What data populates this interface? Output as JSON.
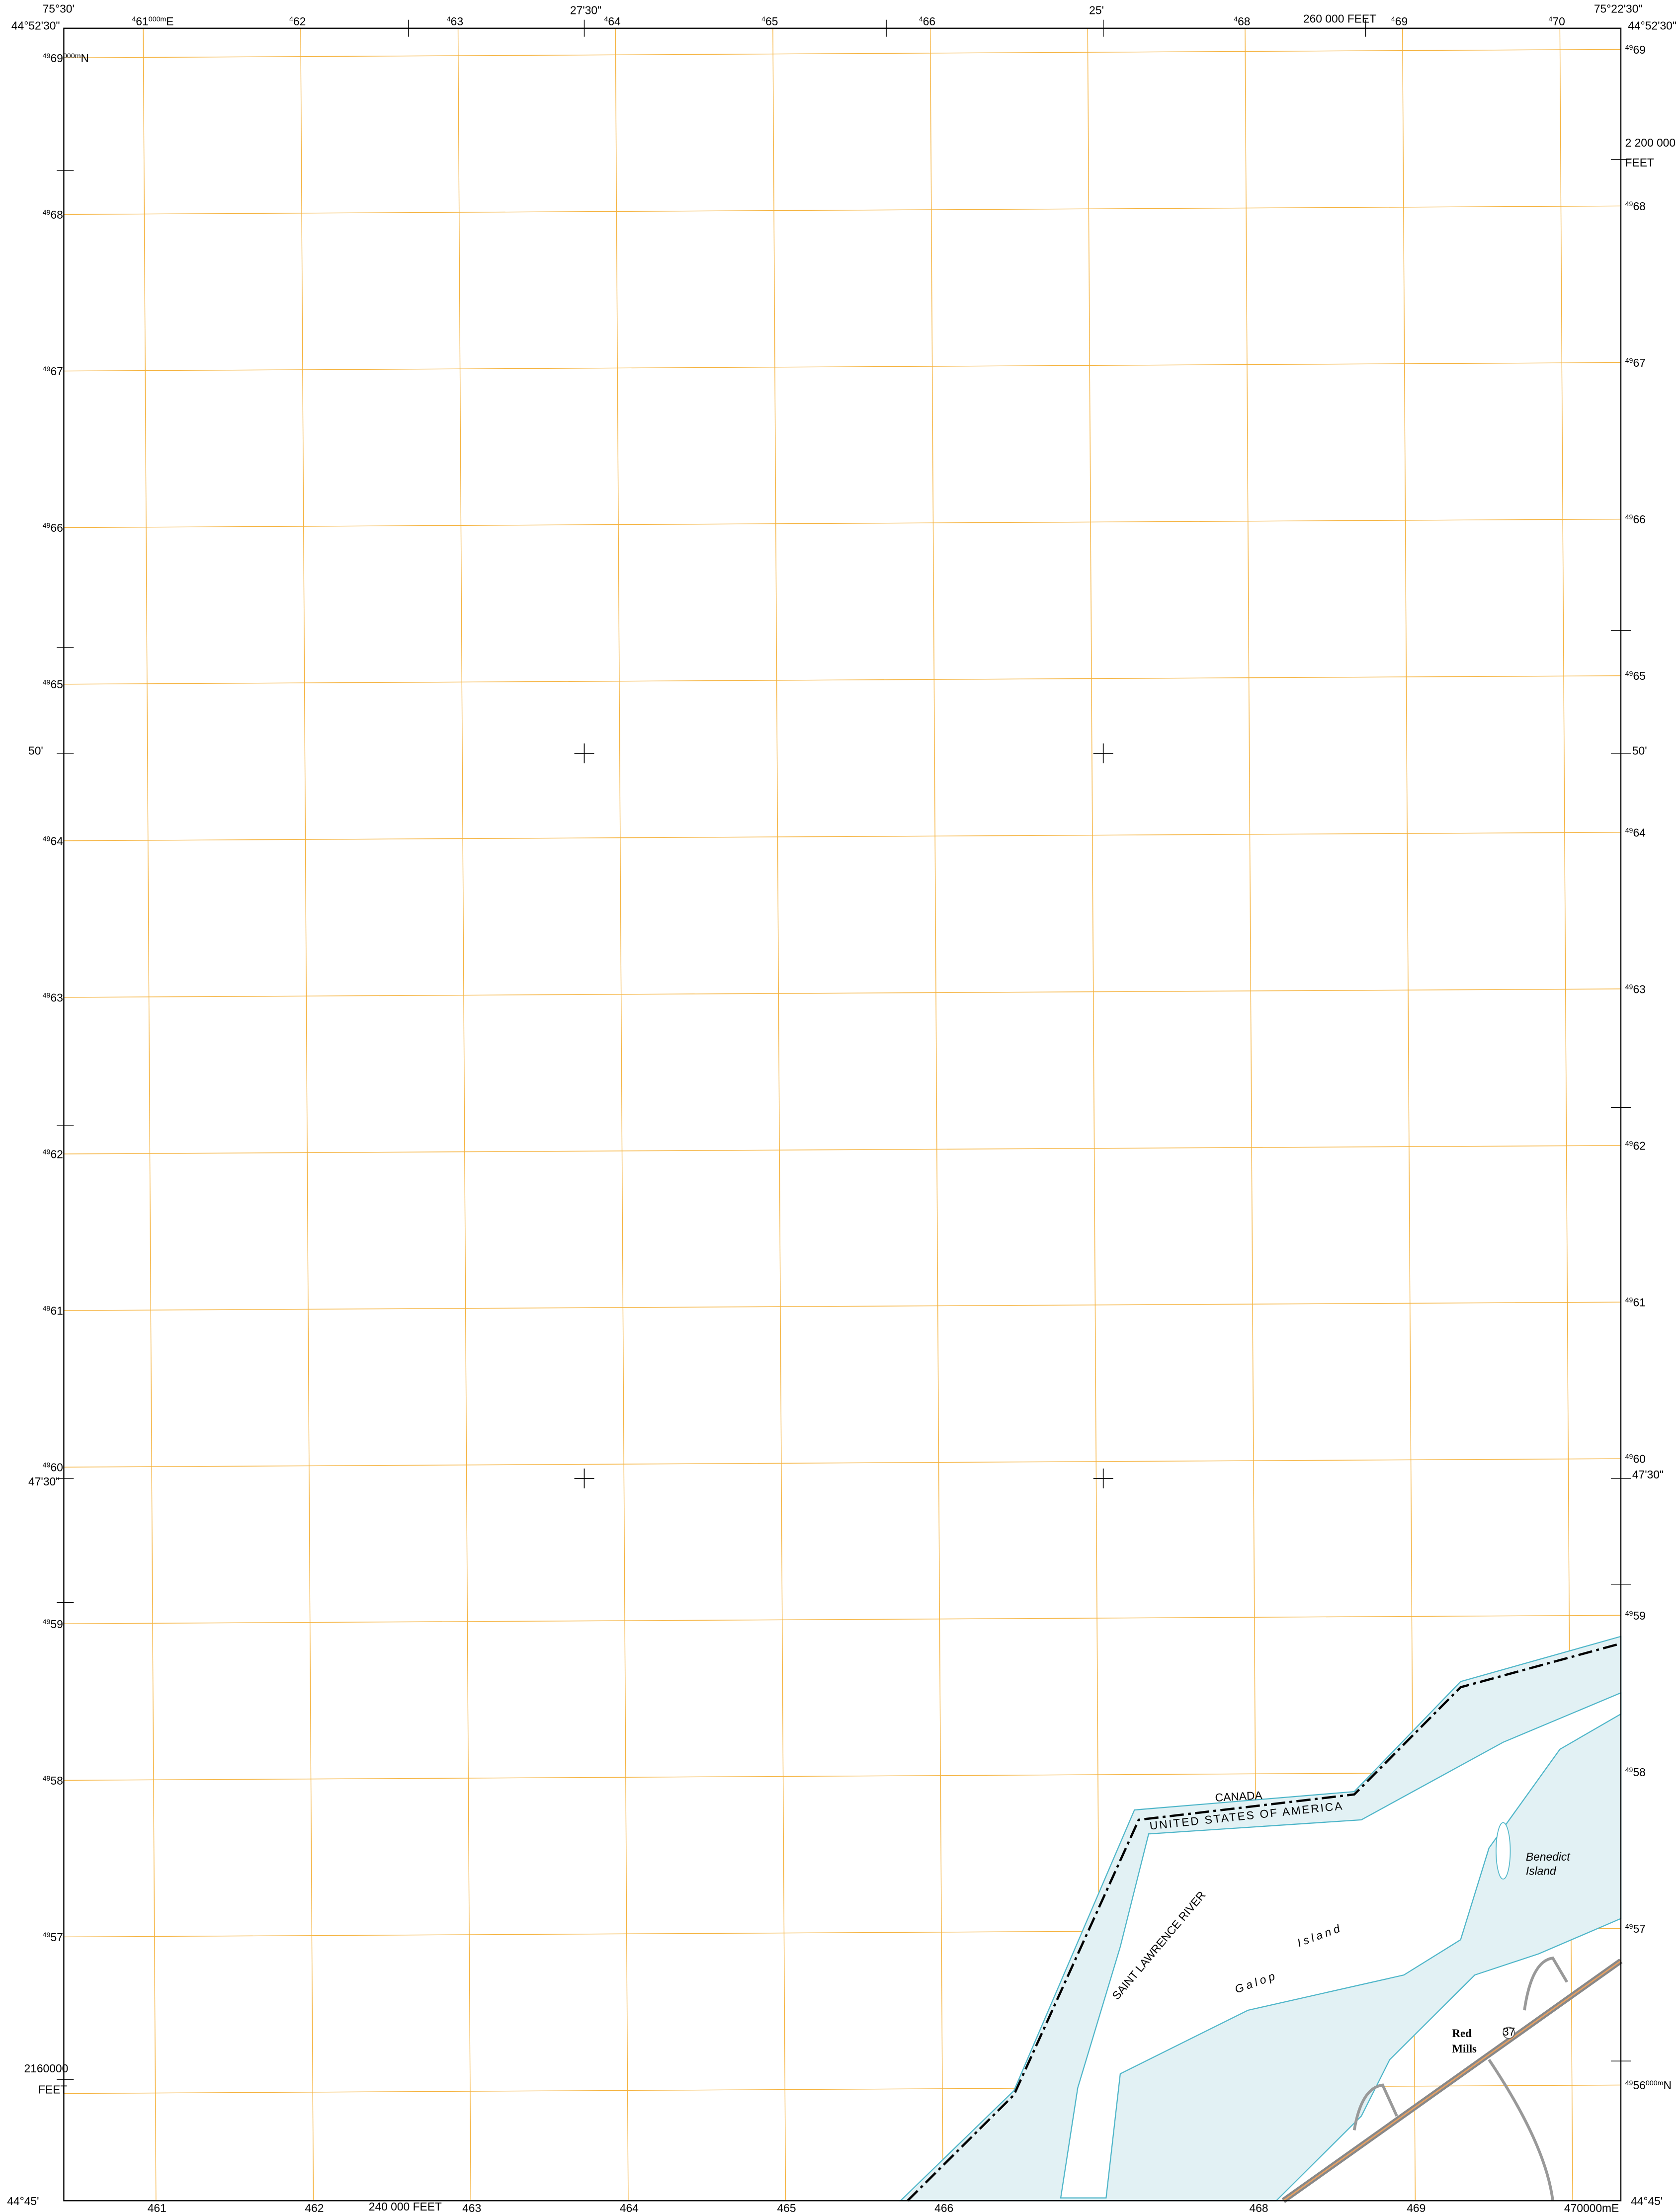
{
  "corners": {
    "top_left_lon": "75°30'",
    "top_left_lat": "44°52'30\"",
    "top_right_lon": "75°22'30\"",
    "top_right_lat": "44°52'30\"",
    "bottom_left_lat": "44°45'",
    "bottom_right_lat": "44°45'"
  },
  "top_ticks": {
    "mid1": "27'30\"",
    "mid2": "25'",
    "feet": "260 000 FEET"
  },
  "right_ticks": {
    "feet_value": "2 200 000",
    "feet_unit": "FEET",
    "lat1": "50'",
    "lat2": "47'30\""
  },
  "left_ticks": {
    "lat1": "50'",
    "lat2": "47'30\"",
    "feet_value": "2160000",
    "feet_unit": "FEET"
  },
  "bottom_ticks": {
    "feet": "240 000 FEET"
  },
  "eastings_top": [
    {
      "sup": "4",
      "num": "61",
      "unit_sup": "000m",
      "unit": "E"
    },
    {
      "sup": "4",
      "num": "62"
    },
    {
      "sup": "4",
      "num": "63"
    },
    {
      "sup": "4",
      "num": "64"
    },
    {
      "sup": "4",
      "num": "65"
    },
    {
      "sup": "4",
      "num": "66"
    },
    {
      "sup": "4",
      "num": "68"
    },
    {
      "sup": "4",
      "num": "69"
    },
    {
      "sup": "4",
      "num": "70"
    }
  ],
  "eastings_bottom": [
    "461",
    "462",
    "463",
    "464",
    "465",
    "466",
    "468",
    "469",
    "470000mE"
  ],
  "northings_left": [
    {
      "sup": "49",
      "num": "69",
      "unit_sup": "000m",
      "unit": "N"
    },
    {
      "sup": "49",
      "num": "68"
    },
    {
      "sup": "49",
      "num": "67"
    },
    {
      "sup": "49",
      "num": "66"
    },
    {
      "sup": "49",
      "num": "65"
    },
    {
      "sup": "49",
      "num": "64"
    },
    {
      "sup": "49",
      "num": "63"
    },
    {
      "sup": "49",
      "num": "62"
    },
    {
      "sup": "49",
      "num": "61"
    },
    {
      "sup": "49",
      "num": "60"
    },
    {
      "sup": "49",
      "num": "59"
    },
    {
      "sup": "49",
      "num": "58"
    },
    {
      "sup": "49",
      "num": "57"
    }
  ],
  "northings_right": [
    {
      "sup": "49",
      "num": "69"
    },
    {
      "sup": "49",
      "num": "68"
    },
    {
      "sup": "49",
      "num": "67"
    },
    {
      "sup": "49",
      "num": "66"
    },
    {
      "sup": "49",
      "num": "65"
    },
    {
      "sup": "49",
      "num": "64"
    },
    {
      "sup": "49",
      "num": "63"
    },
    {
      "sup": "49",
      "num": "62"
    },
    {
      "sup": "49",
      "num": "61"
    },
    {
      "sup": "49",
      "num": "60"
    },
    {
      "sup": "49",
      "num": "59"
    },
    {
      "sup": "49",
      "num": "58"
    },
    {
      "sup": "49",
      "num": "57"
    },
    {
      "sup": "49",
      "num": "56",
      "unit_sup": "000m",
      "unit": "N"
    }
  ],
  "features": {
    "country_north": "CANADA",
    "country_south": "UNITED STATES OF AMERICA",
    "river": "SAINT LAWRENCE RIVER",
    "island1_a": "Galop",
    "island1_b": "Island",
    "island2_a": "Benedict",
    "island2_b": "Island",
    "town_a": "Red",
    "town_b": "Mills",
    "route": "37"
  }
}
